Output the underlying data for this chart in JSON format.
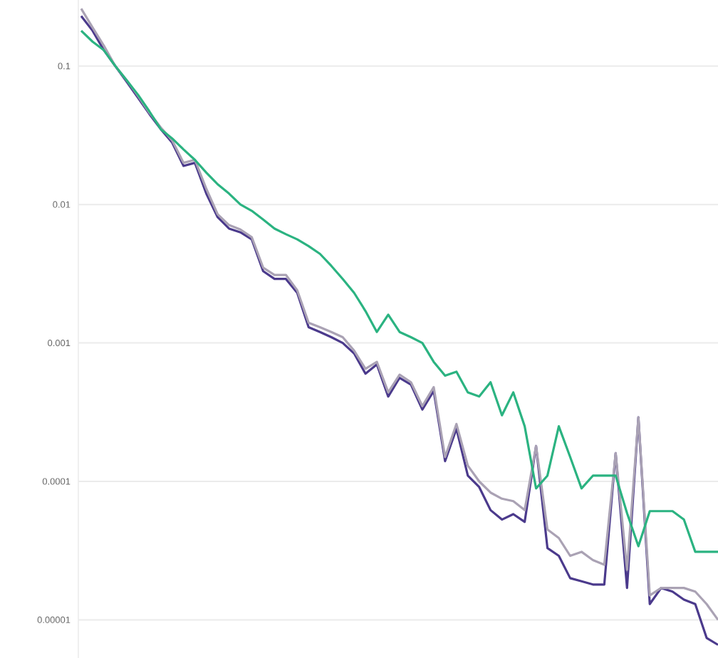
{
  "chart_data": {
    "type": "line",
    "categories": [
      null,
      null,
      null,
      null,
      null,
      null,
      null,
      null,
      null,
      null,
      null,
      null,
      null,
      null,
      null,
      null,
      null,
      null,
      null,
      null,
      null,
      null,
      null,
      null,
      null,
      null,
      null,
      null,
      null,
      null,
      null,
      null,
      null,
      null,
      null,
      null,
      null,
      null,
      null,
      null,
      null,
      null,
      null,
      null,
      null,
      null,
      null,
      null,
      null,
      null,
      null,
      null,
      null,
      null,
      null,
      null,
      null
    ],
    "series": [
      {
        "color": "#4b3a8c",
        "values": [
          0.23,
          0.18,
          0.13,
          0.1,
          0.077,
          0.059,
          0.045,
          0.035,
          0.028,
          0.019,
          0.02,
          0.012,
          0.0081,
          0.0067,
          0.0063,
          0.0056,
          0.0033,
          0.0029,
          0.0029,
          0.0023,
          0.0013,
          0.0012,
          0.0011,
          0.001,
          0.00084,
          0.0006,
          0.0007,
          0.00041,
          0.00056,
          0.0005,
          0.00033,
          0.00045,
          0.00014,
          0.00024,
          0.00011,
          9.1e-05,
          6.2e-05,
          5.3e-05,
          5.8e-05,
          5.1e-05,
          0.00018,
          3.3e-05,
          2.9e-05,
          2e-05,
          1.9e-05,
          1.8e-05,
          1.8e-05,
          0.00016,
          1.7e-05,
          0.00029,
          1.3e-05,
          1.7e-05,
          1.6e-05,
          1.4e-05,
          1.3e-05,
          7.4e-06,
          6.6e-06
        ]
      },
      {
        "color": "#aaa2b4",
        "values": [
          0.26,
          0.19,
          0.14,
          0.1,
          0.079,
          0.061,
          0.046,
          0.036,
          0.029,
          0.02,
          0.021,
          0.013,
          0.0085,
          0.0071,
          0.0066,
          0.0058,
          0.0035,
          0.0031,
          0.0031,
          0.0024,
          0.0014,
          0.0013,
          0.0012,
          0.0011,
          0.00088,
          0.00065,
          0.00073,
          0.00044,
          0.00059,
          0.00052,
          0.00035,
          0.00048,
          0.00015,
          0.00026,
          0.00013,
          0.0001,
          8.3e-05,
          7.5e-05,
          7.2e-05,
          6.2e-05,
          0.00018,
          4.5e-05,
          3.9e-05,
          2.9e-05,
          3.1e-05,
          2.7e-05,
          2.5e-05,
          0.00016,
          2.3e-05,
          0.00029,
          1.5e-05,
          1.7e-05,
          1.7e-05,
          1.7e-05,
          1.6e-05,
          1.3e-05,
          1e-05
        ]
      },
      {
        "color": "#2bb381",
        "values": [
          0.18,
          0.15,
          0.13,
          0.1,
          0.079,
          0.062,
          0.047,
          0.035,
          0.03,
          0.025,
          0.021,
          0.017,
          0.014,
          0.012,
          0.01,
          0.009,
          0.0078,
          0.0067,
          0.0061,
          0.0056,
          0.005,
          0.0044,
          0.0036,
          0.0029,
          0.0023,
          0.0017,
          0.0012,
          0.0016,
          0.0012,
          0.0011,
          0.001,
          0.00073,
          0.00058,
          0.00062,
          0.00044,
          0.00041,
          0.00052,
          0.0003,
          0.00044,
          0.00025,
          8.9e-05,
          0.00011,
          0.00025,
          0.00015,
          8.9e-05,
          0.00011,
          0.00011,
          0.00011,
          5.9e-05,
          3.4e-05,
          6.1e-05,
          6.1e-05,
          6.1e-05,
          5.3e-05,
          3.1e-05,
          3.1e-05,
          3.1e-05
        ]
      }
    ],
    "log": true,
    "ylim": [
      5.3e-06,
      0.3
    ],
    "yticks": [
      {
        "value": 0.1,
        "label": "0.1"
      },
      {
        "value": 0.01,
        "label": "0.01"
      },
      {
        "value": 0.001,
        "label": "0.001"
      },
      {
        "value": 0.0001,
        "label": "0.0001"
      },
      {
        "value": 1e-05,
        "label": "0.00001"
      }
    ],
    "grid": "y",
    "tick_labels": "y"
  }
}
